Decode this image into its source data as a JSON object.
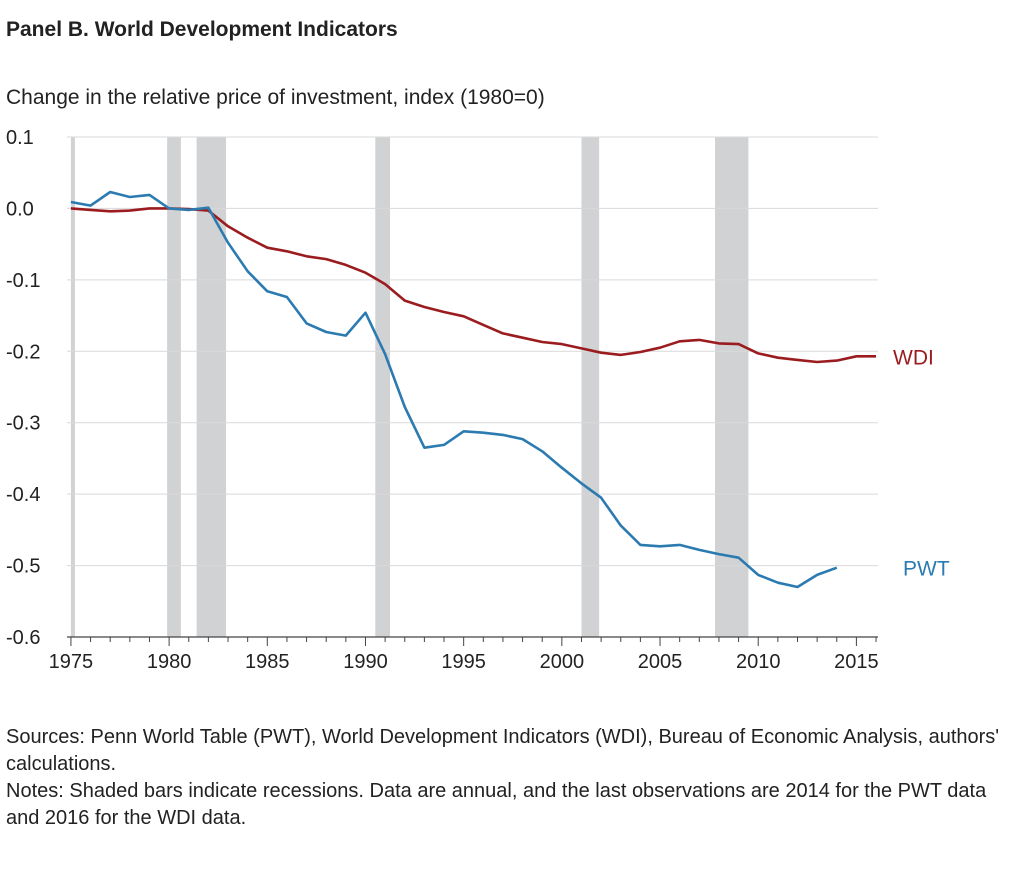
{
  "panel_title": "Panel B. World Development Indicators",
  "subtitle": "Change in the relative price of investment, index (1980=0)",
  "sources": "Sources: Penn World Table (PWT), World Development Indicators (WDI), Bureau of Economic Analysis, authors' calculations.",
  "notes": "Notes: Shaded bars indicate recessions. Data are annual, and the last observations are 2014 for the PWT data and 2016 for the WDI data.",
  "chart_data": {
    "type": "line",
    "title": "",
    "xlabel": "",
    "ylabel": "",
    "xlim": [
      1974.8,
      2016.1
    ],
    "ylim": [
      -0.6,
      0.1
    ],
    "grid": "horizontal",
    "x_ticks": [
      "1975",
      "1980",
      "1985",
      "1990",
      "1995",
      "2000",
      "2005",
      "2010",
      "2015"
    ],
    "x_tick_values": [
      1975,
      1980,
      1985,
      1990,
      1995,
      2000,
      2005,
      2010,
      2015
    ],
    "y_ticks": [
      "0.1",
      "0.0",
      "-0.1",
      "-0.2",
      "-0.3",
      "-0.4",
      "-0.5",
      "-0.6"
    ],
    "y_tick_values": [
      0.1,
      0.0,
      -0.1,
      -0.2,
      -0.3,
      -0.4,
      -0.5,
      -0.6
    ],
    "recessions": [
      [
        1975.0,
        1975.2
      ],
      [
        1979.9,
        1980.6
      ],
      [
        1981.4,
        1982.9
      ],
      [
        1990.5,
        1991.25
      ],
      [
        2001.0,
        2001.9
      ],
      [
        2007.8,
        2009.5
      ]
    ],
    "recession_color": "#d1d2d4",
    "series": [
      {
        "name": "WDI",
        "color": "#9b1c1f",
        "x": [
          1975,
          1976,
          1977,
          1978,
          1979,
          1980,
          1981,
          1982,
          1983,
          1984,
          1985,
          1986,
          1987,
          1988,
          1989,
          1990,
          1991,
          1992,
          1993,
          1994,
          1995,
          1996,
          1997,
          1998,
          1999,
          2000,
          2001,
          2002,
          2003,
          2004,
          2005,
          2006,
          2007,
          2008,
          2009,
          2010,
          2011,
          2012,
          2013,
          2014,
          2015,
          2016
        ],
        "values": [
          0.0,
          -0.002,
          -0.004,
          -0.003,
          0.0,
          0.0,
          -0.001,
          -0.003,
          -0.025,
          -0.041,
          -0.055,
          -0.06,
          -0.067,
          -0.071,
          -0.079,
          -0.09,
          -0.106,
          -0.129,
          -0.138,
          -0.145,
          -0.151,
          -0.163,
          -0.175,
          -0.181,
          -0.187,
          -0.19,
          -0.196,
          -0.202,
          -0.205,
          -0.201,
          -0.195,
          -0.186,
          -0.184,
          -0.189,
          -0.19,
          -0.203,
          -0.209,
          -0.212,
          -0.215,
          -0.213,
          -0.207,
          -0.207
        ]
      },
      {
        "name": "PWT",
        "color": "#2b7bb1",
        "x": [
          1975,
          1976,
          1977,
          1978,
          1979,
          1980,
          1981,
          1982,
          1983,
          1984,
          1985,
          1986,
          1987,
          1988,
          1989,
          1990,
          1991,
          1992,
          1993,
          1994,
          1995,
          1996,
          1997,
          1998,
          1999,
          2000,
          2001,
          2002,
          2003,
          2004,
          2005,
          2006,
          2007,
          2008,
          2009,
          2010,
          2011,
          2012,
          2013,
          2014
        ],
        "values": [
          0.009,
          0.004,
          0.023,
          0.016,
          0.019,
          0.0,
          -0.002,
          0.001,
          -0.048,
          -0.088,
          -0.116,
          -0.124,
          -0.161,
          -0.173,
          -0.178,
          -0.146,
          -0.204,
          -0.278,
          -0.335,
          -0.331,
          -0.312,
          -0.314,
          -0.317,
          -0.323,
          -0.34,
          -0.363,
          -0.385,
          -0.405,
          -0.444,
          -0.471,
          -0.473,
          -0.471,
          -0.478,
          -0.484,
          -0.489,
          -0.513,
          -0.524,
          -0.53,
          -0.513,
          -0.503
        ]
      }
    ]
  }
}
